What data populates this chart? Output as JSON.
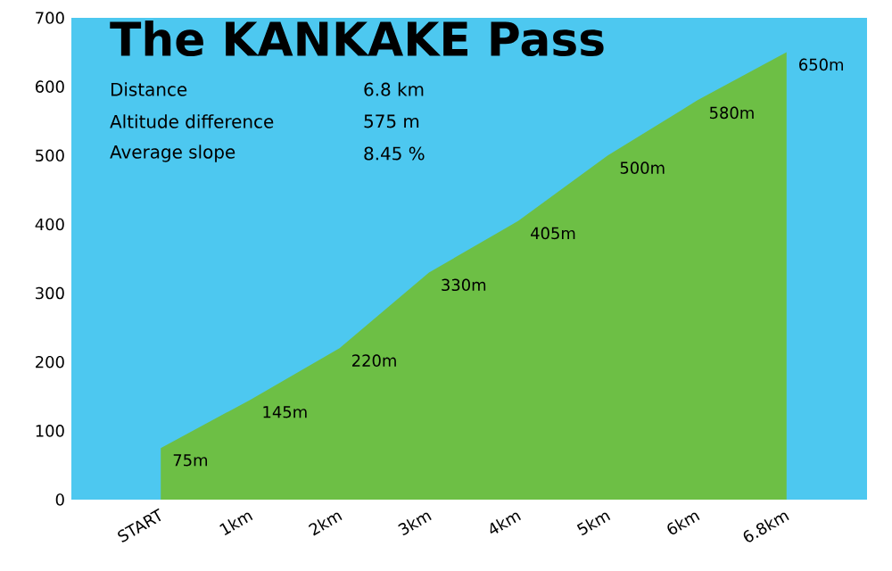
{
  "chart_data": {
    "type": "area",
    "title": "The KANKAKE Pass",
    "annotations": [
      "Distance",
      "6.8 km",
      "Altitude difference",
      "575 m",
      "Average slope",
      "8.45 %"
    ],
    "categories": [
      "START",
      "1km",
      "2km",
      "3km",
      "4km",
      "5km",
      "6km",
      "6.8km"
    ],
    "values": [
      75,
      145,
      220,
      330,
      405,
      500,
      580,
      650
    ],
    "value_labels": [
      "75m",
      "145m",
      "220m",
      "330m",
      "405m",
      "500m",
      "580m",
      "650m"
    ],
    "color": "#6dbf45",
    "ylim": [
      0,
      700
    ],
    "yticks": [
      0,
      100,
      200,
      300,
      400,
      500,
      600,
      700
    ],
    "grid": false
  }
}
